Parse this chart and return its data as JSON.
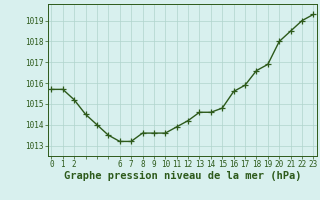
{
  "x": [
    0,
    1,
    2,
    3,
    4,
    5,
    6,
    7,
    8,
    9,
    10,
    11,
    12,
    13,
    14,
    15,
    16,
    17,
    18,
    19,
    20,
    21,
    22,
    23
  ],
  "y": [
    1015.7,
    1015.7,
    1015.2,
    1014.5,
    1014.0,
    1013.5,
    1013.2,
    1013.2,
    1013.6,
    1013.6,
    1013.6,
    1013.9,
    1014.2,
    1014.6,
    1014.6,
    1014.8,
    1015.6,
    1015.9,
    1016.6,
    1016.9,
    1018.0,
    1018.5,
    1019.0,
    1019.3
  ],
  "line_color": "#2d5a1b",
  "marker_color": "#2d5a1b",
  "bg_color": "#d8f0ee",
  "grid_color": "#b0d4cc",
  "xlabel": "Graphe pression niveau de la mer (hPa)",
  "xlabel_fontsize": 7.5,
  "yticks": [
    1013,
    1014,
    1015,
    1016,
    1017,
    1018,
    1019
  ],
  "ylim": [
    1012.5,
    1019.8
  ],
  "xlim": [
    -0.3,
    23.3
  ],
  "xtick_positions": [
    0,
    1,
    2,
    6,
    7,
    8,
    9,
    10,
    11,
    12,
    13,
    14,
    15,
    16,
    17,
    18,
    19,
    20,
    21,
    22,
    23
  ],
  "xtick_labels": [
    "0",
    "1",
    "2",
    "6",
    "7",
    "8",
    "9",
    "10",
    "11",
    "12",
    "13",
    "14",
    "15",
    "16",
    "17",
    "18",
    "19",
    "20",
    "21",
    "22",
    "23"
  ],
  "tick_fontsize": 5.5,
  "marker_size": 4,
  "line_width": 1.0
}
